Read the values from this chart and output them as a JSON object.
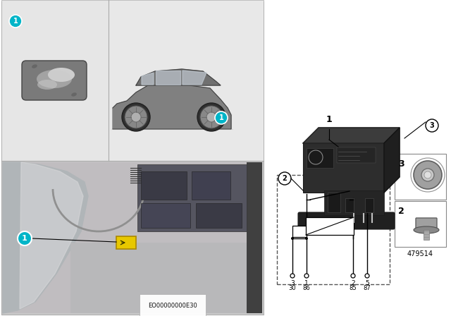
{
  "bg_color": "#ffffff",
  "panel_bg": "#e8e8e8",
  "top_left_bg": "#e6e6e6",
  "top_right_bg": "#e8e8e8",
  "bottom_photo_bg": "#d0d0d0",
  "callout_color": "#00b5c8",
  "callout_text": "#ffffff",
  "eo_number": "EO00000000E30",
  "part_number": "479514",
  "relay_pins_top": [
    "3",
    "1",
    "2",
    "5"
  ],
  "relay_pins_bot": [
    "30",
    "86",
    "85",
    "87"
  ],
  "schematic_box_color": "#555555",
  "line_color": "#000000"
}
